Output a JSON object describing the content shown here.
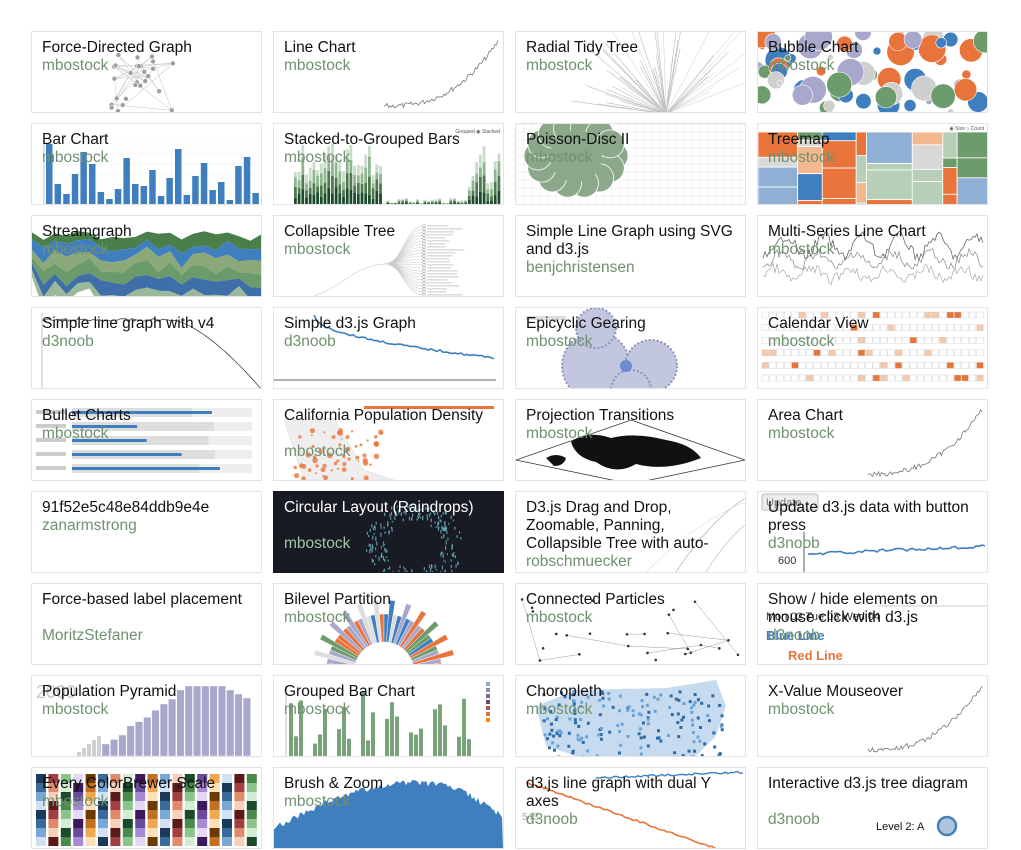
{
  "gallery": [
    {
      "title": "Force-Directed Graph",
      "author": "mbostock",
      "thumb": "network"
    },
    {
      "title": "Line Chart",
      "author": "mbostock",
      "thumb": "line-rise"
    },
    {
      "title": "Radial Tidy Tree",
      "author": "mbostock",
      "thumb": "radial-tree"
    },
    {
      "title": "Bubble Chart",
      "author": "mbostock",
      "thumb": "bubbles"
    },
    {
      "title": "Bar Chart",
      "author": "mbostock",
      "thumb": "bars"
    },
    {
      "title": "Stacked-to-Grouped Bars",
      "author": "mbostock",
      "thumb": "stacked-bars"
    },
    {
      "title": "Poisson-Disc II",
      "author": "mbostock",
      "thumb": "poisson"
    },
    {
      "title": "Treemap",
      "author": "mbostock",
      "thumb": "treemap"
    },
    {
      "title": "Streamgraph",
      "author": "mbostock",
      "thumb": "stream"
    },
    {
      "title": "Collapsible Tree",
      "author": "mbostock",
      "thumb": "tree"
    },
    {
      "title": "Simple Line Graph using SVG and d3.js",
      "author": "benjchristensen",
      "thumb": "blank"
    },
    {
      "title": "Multi-Series Line Chart",
      "author": "mbostock",
      "thumb": "multi-line"
    },
    {
      "title": "Simple line graph with v4",
      "author": "d3noob",
      "thumb": "line-drop"
    },
    {
      "title": "Simple d3.js Graph",
      "author": "d3noob",
      "thumb": "blue-decline"
    },
    {
      "title": "Epicyclic Gearing",
      "author": "mbostock",
      "thumb": "gears"
    },
    {
      "title": "Calendar View",
      "author": "mbostock",
      "thumb": "calendar"
    },
    {
      "title": "Bullet Charts",
      "author": "mbostock",
      "thumb": "bullet"
    },
    {
      "title": "California Population Density",
      "author": "mbostock",
      "thumb": "map-ca"
    },
    {
      "title": "Projection Transitions",
      "author": "mbostock",
      "thumb": "world"
    },
    {
      "title": "Area Chart",
      "author": "mbostock",
      "thumb": "line-rise"
    },
    {
      "title": "91f52e5c48e84ddb9e4e",
      "author": "zanarmstrong",
      "thumb": "blank"
    },
    {
      "title": "Circular Layout (Raindrops)",
      "author": "mbostock",
      "thumb": "raindrops"
    },
    {
      "title": "D3.js Drag and Drop, Zoomable, Panning, Collapsible Tree with auto-",
      "author": "robschmuecker",
      "thumb": "arcs"
    },
    {
      "title": "Update d3.js data with button press",
      "author": "d3noob",
      "thumb": "update"
    },
    {
      "title": "Force-based label placement",
      "author": "MoritzStefaner",
      "thumb": "blank"
    },
    {
      "title": "Bilevel Partition",
      "author": "mbostock",
      "thumb": "partition"
    },
    {
      "title": "Connected Particles",
      "author": "mbostock",
      "thumb": "particles"
    },
    {
      "title": "Show / hide elements on mouse click with d3.js",
      "author": "d3noob",
      "thumb": "showhide"
    },
    {
      "title": "Population Pyramid",
      "author": "mbostock",
      "thumb": "pyramid"
    },
    {
      "title": "Grouped Bar Chart",
      "author": "mbostock",
      "thumb": "grouped"
    },
    {
      "title": "Choropleth",
      "author": "mbostock",
      "thumb": "choropleth"
    },
    {
      "title": "X-Value Mouseover",
      "author": "mbostock",
      "thumb": "line-rise"
    },
    {
      "title": "Every ColorBrewer Scale",
      "author": "mbostock",
      "thumb": "colorbrewer"
    },
    {
      "title": "Brush & Zoom",
      "author": "mbostock",
      "thumb": "area-blue"
    },
    {
      "title": "d3.js line graph with dual Y axes",
      "author": "d3noob",
      "thumb": "dual-axis"
    },
    {
      "title": "Interactive d3.js tree diagram",
      "author": "d3noob",
      "thumb": "interactive-tree"
    }
  ],
  "thumb_text": {
    "stacked_legend": "Grouped  ◉ Stacked",
    "treemap_legend": "◉ Size  ○ Count",
    "update_button": "Update",
    "update_tick": "600",
    "showhide_dates": "Mon 02     Tue 03     Wed 04",
    "showhide_blue": "Blue Line",
    "showhide_red": "Red Line",
    "pyramid_year": "2000",
    "tree_level": "Level 2: A",
    "dual_tick": "543"
  },
  "colors": {
    "blue": "#3f7fbf",
    "green": "#6c9b6c",
    "orange": "#e8743b",
    "gray": "#b9b9b9",
    "lavender": "#a8a7cc",
    "author_green": "#6f916f",
    "dark_bg": "#181a24"
  }
}
